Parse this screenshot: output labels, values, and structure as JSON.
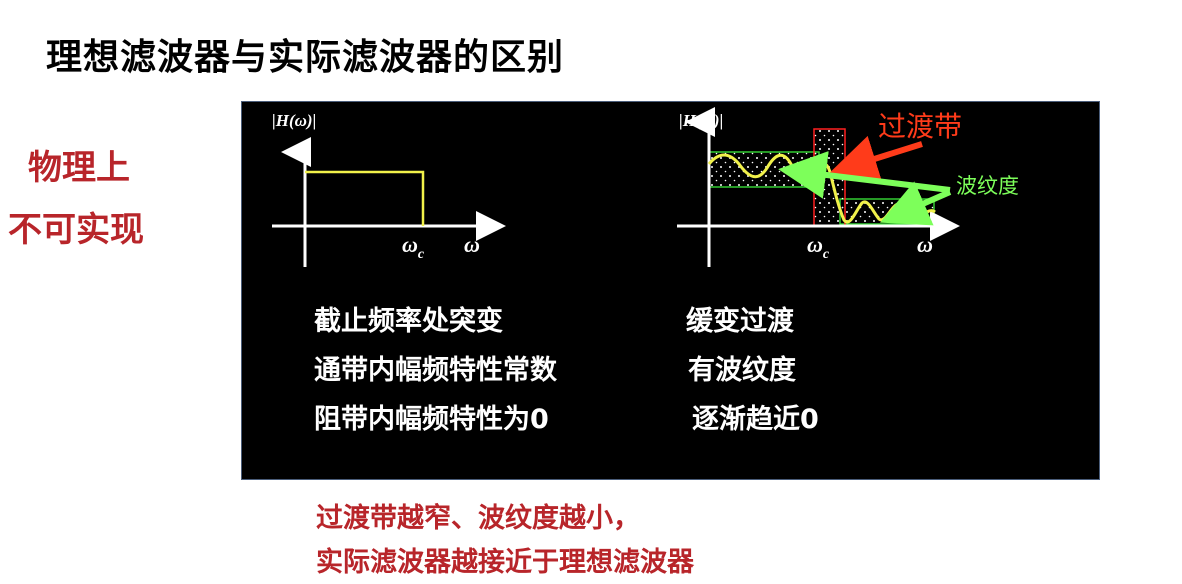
{
  "title": "理想滤波器与实际滤波器的区别",
  "side": {
    "line1": "物理上",
    "line2": "不可实现"
  },
  "ideal": {
    "axis_label": "|H(ω)|",
    "cutoff_label": "ω",
    "cutoff_sub": "c",
    "x_label": "ω"
  },
  "real": {
    "axis_label": "|H(ω)|",
    "cutoff_label": "ω",
    "cutoff_sub": "c",
    "x_label": "ω",
    "transition_label": "过渡带",
    "ripple_label": "波纹度"
  },
  "ideal_text": [
    "截止频率处突变",
    "通带内幅频特性常数",
    "阻带内幅频特性为0"
  ],
  "real_text": [
    "缓变过渡",
    "有波纹度",
    "逐渐趋近0"
  ],
  "bottom": {
    "line1": "过渡带越窄、波纹度越小，",
    "line2": "实际滤波器越接近于理想滤波器"
  },
  "colors": {
    "accent_red": "#b8252a",
    "curve": "#f1f14a",
    "arrow_red": "#ff3b1a",
    "arrow_green": "#7dff5a"
  }
}
